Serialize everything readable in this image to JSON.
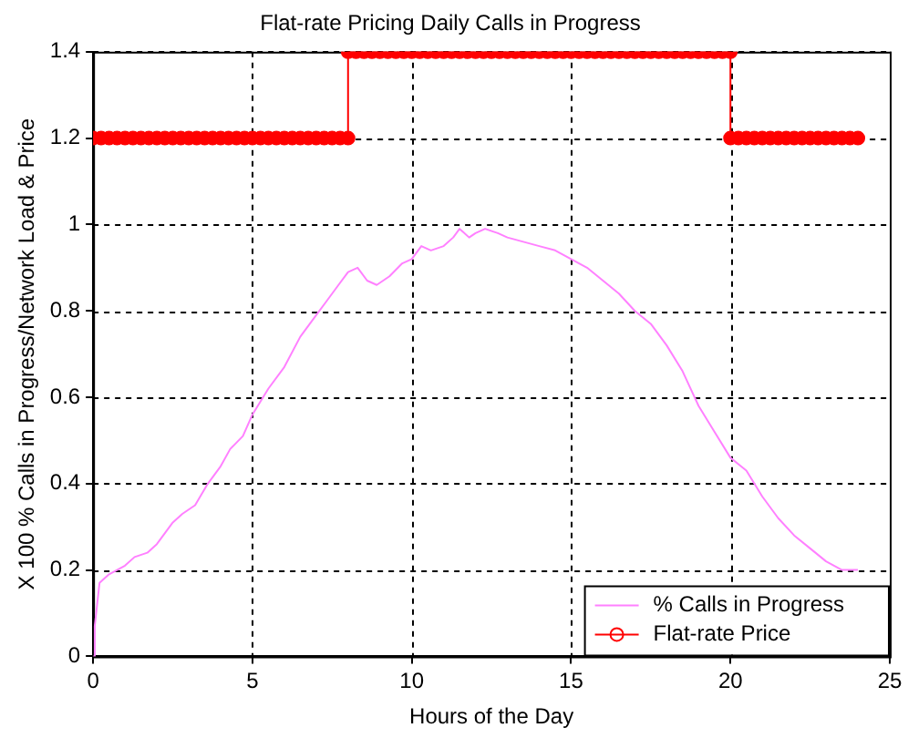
{
  "chart_data": {
    "type": "line",
    "title": "Flat-rate Pricing Daily Calls in Progress",
    "xlabel": "Hours of the Day",
    "ylabel": "X 100 % Calls in Progress/Network Load & Price",
    "xlim": [
      0,
      25
    ],
    "xticks": [
      0,
      5,
      10,
      15,
      20,
      25
    ],
    "ylim": [
      0,
      1.4
    ],
    "yticks": [
      0,
      0.2,
      0.4,
      0.6,
      0.8,
      1,
      1.2,
      1.4
    ],
    "grid": true,
    "legend": "bottom right",
    "line_style": "solid",
    "series": [
      {
        "name": "% Calls in Progress",
        "color": "#ff80ff",
        "marker": "none",
        "x": [
          0,
          0.05,
          0.2,
          0.5,
          1,
          1.3,
          1.7,
          2,
          2.5,
          2.8,
          3.2,
          3.6,
          4,
          4.3,
          4.7,
          5,
          5.5,
          6,
          6.5,
          7,
          7.3,
          7.7,
          8,
          8.3,
          8.6,
          8.9,
          9.3,
          9.7,
          10,
          10.3,
          10.6,
          11,
          11.3,
          11.5,
          11.8,
          12,
          12.3,
          12.7,
          13,
          13.5,
          14,
          14.5,
          15,
          15.5,
          16,
          16.5,
          17,
          17.5,
          18,
          18.5,
          19,
          19.5,
          20,
          20.5,
          21,
          21.5,
          22,
          22.5,
          23,
          23.5,
          24
        ],
        "values": [
          0,
          0.07,
          0.17,
          0.19,
          0.21,
          0.23,
          0.24,
          0.26,
          0.31,
          0.33,
          0.35,
          0.4,
          0.44,
          0.48,
          0.51,
          0.56,
          0.62,
          0.67,
          0.74,
          0.79,
          0.82,
          0.86,
          0.89,
          0.9,
          0.87,
          0.86,
          0.88,
          0.91,
          0.92,
          0.95,
          0.94,
          0.95,
          0.97,
          0.99,
          0.97,
          0.98,
          0.99,
          0.98,
          0.97,
          0.96,
          0.95,
          0.94,
          0.92,
          0.9,
          0.87,
          0.84,
          0.8,
          0.77,
          0.72,
          0.66,
          0.58,
          0.52,
          0.46,
          0.43,
          0.37,
          0.32,
          0.28,
          0.25,
          0.22,
          0.2,
          0.2
        ]
      },
      {
        "name": "Flat-rate Price",
        "color": "#ff0000",
        "marker": "circle",
        "x": [
          0,
          0.25,
          0.5,
          0.75,
          1,
          1.25,
          1.5,
          1.75,
          2,
          2.25,
          2.5,
          2.75,
          3,
          3.25,
          3.5,
          3.75,
          4,
          4.25,
          4.5,
          4.75,
          5,
          5.25,
          5.5,
          5.75,
          6,
          6.25,
          6.5,
          6.75,
          7,
          7.25,
          7.5,
          7.75,
          8,
          8,
          8.25,
          8.5,
          8.75,
          9,
          9.25,
          9.5,
          9.75,
          10,
          10.25,
          10.5,
          10.75,
          11,
          11.25,
          11.5,
          11.75,
          12,
          12.25,
          12.5,
          12.75,
          13,
          13.25,
          13.5,
          13.75,
          14,
          14.25,
          14.5,
          14.75,
          15,
          15.25,
          15.5,
          15.75,
          16,
          16.25,
          16.5,
          16.75,
          17,
          17.25,
          17.5,
          17.75,
          18,
          18.25,
          18.5,
          18.75,
          19,
          19.25,
          19.5,
          19.75,
          20,
          20,
          20.25,
          20.5,
          20.75,
          21,
          21.25,
          21.5,
          21.75,
          22,
          22.25,
          22.5,
          22.75,
          23,
          23.25,
          23.5,
          23.75,
          24
        ],
        "values": [
          1.2,
          1.2,
          1.2,
          1.2,
          1.2,
          1.2,
          1.2,
          1.2,
          1.2,
          1.2,
          1.2,
          1.2,
          1.2,
          1.2,
          1.2,
          1.2,
          1.2,
          1.2,
          1.2,
          1.2,
          1.2,
          1.2,
          1.2,
          1.2,
          1.2,
          1.2,
          1.2,
          1.2,
          1.2,
          1.2,
          1.2,
          1.2,
          1.2,
          1.4,
          1.4,
          1.4,
          1.4,
          1.4,
          1.4,
          1.4,
          1.4,
          1.4,
          1.4,
          1.4,
          1.4,
          1.4,
          1.4,
          1.4,
          1.4,
          1.4,
          1.4,
          1.4,
          1.4,
          1.4,
          1.4,
          1.4,
          1.4,
          1.4,
          1.4,
          1.4,
          1.4,
          1.4,
          1.4,
          1.4,
          1.4,
          1.4,
          1.4,
          1.4,
          1.4,
          1.4,
          1.4,
          1.4,
          1.4,
          1.4,
          1.4,
          1.4,
          1.4,
          1.4,
          1.4,
          1.4,
          1.4,
          1.4,
          1.2,
          1.2,
          1.2,
          1.2,
          1.2,
          1.2,
          1.2,
          1.2,
          1.2,
          1.2,
          1.2,
          1.2,
          1.2,
          1.2,
          1.2,
          1.2,
          1.2
        ]
      }
    ]
  }
}
